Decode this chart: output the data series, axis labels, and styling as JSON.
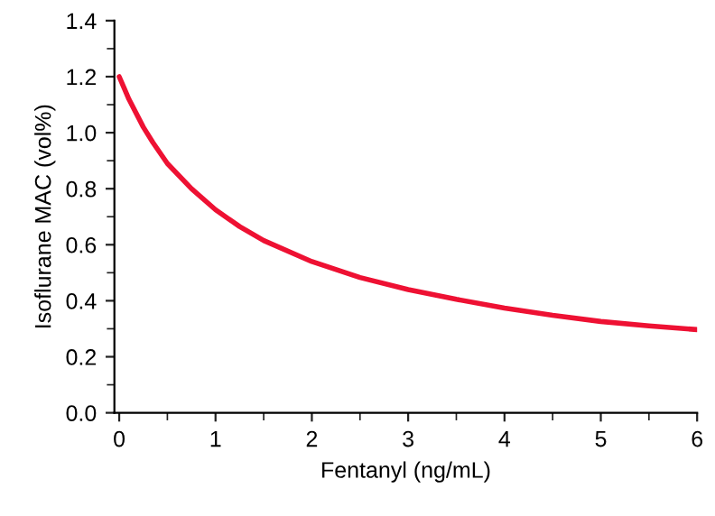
{
  "chart_data": {
    "type": "line",
    "xlabel": "Fentanyl (ng/mL)",
    "ylabel": "Isoflurane MAC (vol%)",
    "x": [
      0,
      0.05,
      0.1,
      0.25,
      0.35,
      0.5,
      0.75,
      1,
      1.25,
      1.5,
      2,
      2.5,
      3,
      3.5,
      4,
      4.5,
      5,
      5.5,
      6
    ],
    "series": [
      {
        "color": "#ee1133",
        "values": [
          1.2,
          1.16,
          1.12,
          1.02,
          0.965,
          0.89,
          0.8,
          0.725,
          0.665,
          0.615,
          0.54,
          0.483,
          0.44,
          0.405,
          0.374,
          0.348,
          0.326,
          0.31,
          0.297
        ]
      }
    ],
    "xlim": [
      -0.05,
      6
    ],
    "xticks": [
      0,
      1,
      2,
      3,
      4,
      5,
      6
    ],
    "ylim": [
      0,
      1.4
    ],
    "yticks": [
      {
        "value": 0,
        "label": "0.0"
      },
      {
        "value": 0.2,
        "label": "0.2"
      },
      {
        "value": 0.4,
        "label": "0.4"
      },
      {
        "value": 0.6,
        "label": "0.6"
      },
      {
        "value": 0.8,
        "label": "0.8"
      },
      {
        "value": 1.0,
        "label": "1.0"
      },
      {
        "value": 1.2,
        "label": "1.2"
      },
      {
        "value": 1.4,
        "label": "1.4"
      }
    ],
    "grid": false,
    "marker": "none",
    "line_style": "solid"
  }
}
